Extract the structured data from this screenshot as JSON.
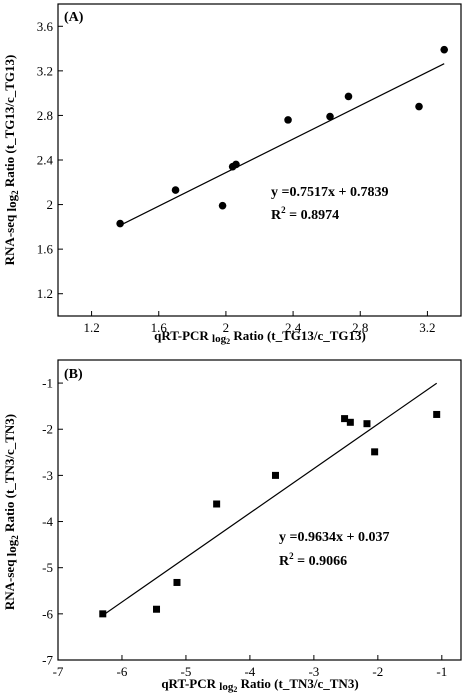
{
  "chart_data": [
    {
      "type": "scatter",
      "panel_label": "(A)",
      "xlabel_main": "qRT-PCR ",
      "xlabel_sub": "log",
      "xlabel_subsub": "2",
      "xlabel_tail": " Ratio (t_TG13/c_TG13)",
      "ylabel_main": "RNA-seq ",
      "ylabel_sub": "log",
      "ylabel_subsub": "2",
      "ylabel_tail": " Ratio (t_TG13/c_TG13)",
      "xlim": [
        1.0,
        3.4
      ],
      "ylim": [
        1.0,
        3.8
      ],
      "xticks": [
        1.2,
        1.6,
        2.0,
        2.4,
        2.8,
        3.2
      ],
      "yticks": [
        1.2,
        1.6,
        2.0,
        2.4,
        2.8,
        3.2,
        3.6
      ],
      "marker": "circle",
      "points": [
        {
          "x": 1.37,
          "y": 1.83
        },
        {
          "x": 1.7,
          "y": 2.13
        },
        {
          "x": 1.98,
          "y": 1.99
        },
        {
          "x": 2.04,
          "y": 2.34
        },
        {
          "x": 2.06,
          "y": 2.36
        },
        {
          "x": 2.37,
          "y": 2.76
        },
        {
          "x": 2.62,
          "y": 2.79
        },
        {
          "x": 2.73,
          "y": 2.97
        },
        {
          "x": 3.15,
          "y": 2.88
        },
        {
          "x": 3.3,
          "y": 3.39
        }
      ],
      "fit": {
        "slope": 0.7517,
        "intercept": 0.7839,
        "x_range": [
          1.37,
          3.3
        ]
      },
      "equation": "y =0.7517x + 0.7839",
      "r2_label": "R",
      "r2_sup": "2",
      "r2_value": " = 0.8974"
    },
    {
      "type": "scatter",
      "panel_label": "(B)",
      "xlabel_main": "qRT-PCR ",
      "xlabel_sub": "log",
      "xlabel_subsub": "2",
      "xlabel_tail": " Ratio (t_TN3/c_TN3)",
      "ylabel_main": "RNA-seq ",
      "ylabel_sub": "log",
      "ylabel_subsub": "2",
      "ylabel_tail": " Ratio (t_TN3/c_TN3)",
      "xlim": [
        -7,
        -0.7
      ],
      "ylim": [
        -7,
        -0.5
      ],
      "xticks": [
        -7,
        -6,
        -5,
        -4,
        -3,
        -2,
        -1
      ],
      "yticks": [
        -7,
        -6,
        -5,
        -4,
        -3,
        -2,
        -1
      ],
      "marker": "square",
      "points": [
        {
          "x": -6.3,
          "y": -6.0
        },
        {
          "x": -5.46,
          "y": -5.9
        },
        {
          "x": -5.14,
          "y": -5.32
        },
        {
          "x": -4.52,
          "y": -3.62
        },
        {
          "x": -3.6,
          "y": -3.0
        },
        {
          "x": -2.52,
          "y": -1.77
        },
        {
          "x": -2.43,
          "y": -1.85
        },
        {
          "x": -2.17,
          "y": -1.88
        },
        {
          "x": -2.05,
          "y": -2.49
        },
        {
          "x": -1.08,
          "y": -1.68
        }
      ],
      "fit": {
        "slope": 0.9634,
        "intercept": 0.037,
        "x_range": [
          -6.3,
          -1.08
        ]
      },
      "equation": "y =0.9634x + 0.037",
      "r2_label": "R",
      "r2_sup": "2",
      "r2_value": " = 0.9066"
    }
  ]
}
